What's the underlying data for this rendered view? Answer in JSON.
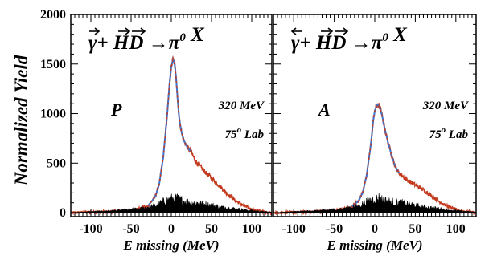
{
  "chart_data": [
    {
      "type": "line",
      "panel_label": "P",
      "reaction_text": {
        "beam": "γ",
        "target": "HD",
        "arrow": "→",
        "product": "π",
        "product_sup": "0",
        "rest": "X"
      },
      "beam_arrow": "right",
      "energy_label": "320 MeV",
      "angle_label": {
        "value": "75",
        "sup": "o",
        "unit": "Lab"
      },
      "xlabel": "E missing  (MeV)",
      "ylabel": "Normalized Yield",
      "xlim": [
        -125,
        125
      ],
      "ylim": [
        -40,
        2000
      ],
      "xticks": [
        -100,
        -50,
        0,
        50,
        100
      ],
      "yticks": [
        0,
        500,
        1000,
        1500,
        2000
      ],
      "grid": false,
      "series": [
        {
          "role": "data",
          "color": "#c43a1e",
          "x": [
            -125,
            -100,
            -75,
            -50,
            -30,
            -20,
            -15,
            -10,
            -5,
            -2,
            0,
            2,
            4,
            6,
            8,
            10,
            13,
            16,
            20,
            25,
            30,
            40,
            50,
            60,
            70,
            80,
            90,
            100,
            110,
            120,
            125
          ],
          "y": [
            0,
            5,
            10,
            20,
            60,
            160,
            290,
            560,
            1000,
            1320,
            1470,
            1545,
            1510,
            1360,
            1130,
            940,
            800,
            720,
            660,
            610,
            520,
            430,
            350,
            270,
            190,
            120,
            70,
            35,
            15,
            5,
            0
          ]
        },
        {
          "role": "fit",
          "color": "#3a78d4",
          "x": [
            -30,
            -20,
            -15,
            -10,
            -5,
            -2,
            0,
            2,
            4,
            6,
            8,
            10,
            13,
            16,
            20,
            25
          ],
          "y": [
            60,
            160,
            290,
            560,
            1000,
            1320,
            1470,
            1545,
            1510,
            1360,
            1130,
            940,
            800,
            720,
            660,
            610
          ]
        },
        {
          "role": "background",
          "color": "#000000",
          "x": [
            -125,
            -100,
            -60,
            -40,
            -20,
            -10,
            0,
            5,
            10,
            20,
            30,
            40,
            50,
            60,
            80,
            100,
            125
          ],
          "y": [
            0,
            10,
            25,
            40,
            70,
            110,
            140,
            150,
            130,
            110,
            100,
            90,
            75,
            60,
            40,
            20,
            5
          ]
        }
      ]
    },
    {
      "type": "line",
      "panel_label": "A",
      "reaction_text": {
        "beam": "γ",
        "target": "HD",
        "arrow": "→",
        "product": "π",
        "product_sup": "0",
        "rest": "X"
      },
      "beam_arrow": "left",
      "energy_label": "320 MeV",
      "angle_label": {
        "value": "75",
        "sup": "o",
        "unit": "Lab"
      },
      "xlabel": "E missing  (MeV)",
      "xlim": [
        -125,
        125
      ],
      "ylim": [
        -40,
        2000
      ],
      "xticks": [
        -100,
        -50,
        0,
        50,
        100
      ],
      "grid": false,
      "series": [
        {
          "role": "data",
          "color": "#c43a1e",
          "x": [
            -125,
            -100,
            -75,
            -50,
            -30,
            -20,
            -15,
            -10,
            -5,
            -2,
            0,
            3,
            6,
            9,
            12,
            16,
            20,
            25,
            30,
            40,
            50,
            60,
            70,
            80,
            90,
            100,
            110,
            120,
            125
          ],
          "y": [
            0,
            5,
            10,
            20,
            50,
            120,
            200,
            380,
            680,
            920,
            1030,
            1090,
            1070,
            980,
            860,
            720,
            600,
            470,
            400,
            330,
            280,
            230,
            170,
            110,
            65,
            30,
            12,
            5,
            0
          ]
        },
        {
          "role": "fit",
          "color": "#3a78d4",
          "x": [
            -30,
            -20,
            -15,
            -10,
            -5,
            -2,
            0,
            3,
            6,
            9,
            12,
            16,
            20,
            25,
            30
          ],
          "y": [
            50,
            120,
            200,
            380,
            680,
            920,
            1030,
            1090,
            1070,
            980,
            860,
            720,
            600,
            470,
            400
          ]
        },
        {
          "role": "background",
          "color": "#000000",
          "x": [
            -125,
            -100,
            -60,
            -40,
            -20,
            -10,
            0,
            5,
            10,
            20,
            30,
            40,
            50,
            60,
            80,
            100,
            125
          ],
          "y": [
            0,
            10,
            25,
            40,
            70,
            110,
            140,
            150,
            130,
            110,
            100,
            90,
            75,
            60,
            40,
            20,
            5
          ]
        }
      ]
    }
  ]
}
